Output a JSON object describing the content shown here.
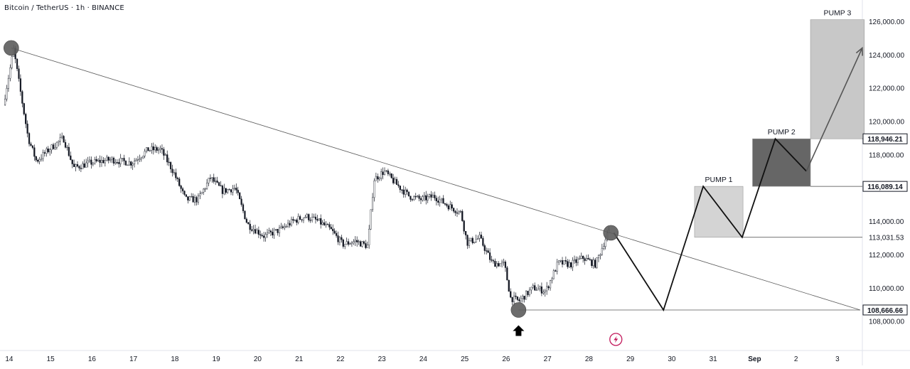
{
  "header": {
    "title": "Bitcoin / TetherUS · 1h · BINANCE"
  },
  "colors": {
    "candle": "#131722",
    "trendline": "#5a5a5a",
    "marker": "#5c5c5c",
    "box_light": "#d4d4d4",
    "box_dark": "#666666",
    "box_pump3": "#c8c8c8",
    "path": "#111111",
    "lightning": "#c2185b"
  },
  "icons": {
    "up_arrow": "up-arrow-icon",
    "lightning": "lightning-icon"
  },
  "chart_data": {
    "type": "candlestick",
    "symbol": "Bitcoin / TetherUS",
    "interval": "1h",
    "exchange": "BINANCE",
    "ylim": [
      106000,
      127000
    ],
    "grid": false,
    "y_ticks": [
      {
        "value": 126000,
        "label": "126,000.00"
      },
      {
        "value": 124000,
        "label": "124,000.00"
      },
      {
        "value": 122000,
        "label": "122,000.00"
      },
      {
        "value": 120000,
        "label": "120,000.00"
      },
      {
        "value": 118000,
        "label": "118,000.00"
      },
      {
        "value": 114000,
        "label": "114,000.00"
      },
      {
        "value": 112000,
        "label": "112,000.00"
      },
      {
        "value": 110000,
        "label": "110,000.00"
      },
      {
        "value": 108000,
        "label": "108,000.00"
      }
    ],
    "price_tags": [
      {
        "value": 118946.21,
        "label": "118,946.21",
        "style": "boxed"
      },
      {
        "value": 116089.14,
        "label": "116,089.14",
        "style": "boxed"
      },
      {
        "value": 113031.53,
        "label": "113,031.53",
        "style": "plain"
      },
      {
        "value": 108666.66,
        "label": "108,666.66",
        "style": "boxed"
      }
    ],
    "x_ticks": [
      {
        "day": 14,
        "label": "14"
      },
      {
        "day": 15,
        "label": "15"
      },
      {
        "day": 16,
        "label": "16"
      },
      {
        "day": 17,
        "label": "17"
      },
      {
        "day": 18,
        "label": "18"
      },
      {
        "day": 19,
        "label": "19"
      },
      {
        "day": 20,
        "label": "20"
      },
      {
        "day": 21,
        "label": "21"
      },
      {
        "day": 22,
        "label": "22"
      },
      {
        "day": 23,
        "label": "23"
      },
      {
        "day": 24,
        "label": "24"
      },
      {
        "day": 25,
        "label": "25"
      },
      {
        "day": 26,
        "label": "26"
      },
      {
        "day": 27,
        "label": "27"
      },
      {
        "day": 28,
        "label": "28"
      },
      {
        "day": 29,
        "label": "29"
      },
      {
        "day": 30,
        "label": "30"
      },
      {
        "day": 31,
        "label": "31"
      },
      {
        "day": 32,
        "label": "Sep",
        "bold": true
      },
      {
        "day": 33,
        "label": "2"
      },
      {
        "day": 34,
        "label": "3"
      }
    ],
    "price_path": [
      [
        13.9,
        121000
      ],
      [
        14.15,
        124300
      ],
      [
        14.3,
        122000
      ],
      [
        14.5,
        119000
      ],
      [
        14.7,
        117600
      ],
      [
        15.0,
        118300
      ],
      [
        15.35,
        119000
      ],
      [
        15.6,
        117200
      ],
      [
        16.0,
        117500
      ],
      [
        16.5,
        117700
      ],
      [
        17.0,
        117500
      ],
      [
        17.4,
        118300
      ],
      [
        17.7,
        118300
      ],
      [
        18.0,
        117000
      ],
      [
        18.3,
        115300
      ],
      [
        18.6,
        115300
      ],
      [
        18.9,
        116600
      ],
      [
        19.2,
        115800
      ],
      [
        19.5,
        116000
      ],
      [
        19.8,
        113800
      ],
      [
        20.2,
        113100
      ],
      [
        20.6,
        113500
      ],
      [
        20.9,
        114000
      ],
      [
        21.2,
        114300
      ],
      [
        21.5,
        114000
      ],
      [
        21.8,
        113500
      ],
      [
        22.1,
        112600
      ],
      [
        22.4,
        112800
      ],
      [
        22.7,
        112500
      ],
      [
        22.85,
        116500
      ],
      [
        23.1,
        117000
      ],
      [
        23.4,
        116200
      ],
      [
        23.7,
        115500
      ],
      [
        24.0,
        115300
      ],
      [
        24.3,
        115500
      ],
      [
        24.6,
        115000
      ],
      [
        24.95,
        114500
      ],
      [
        25.1,
        112700
      ],
      [
        25.4,
        113000
      ],
      [
        25.7,
        111500
      ],
      [
        26.0,
        111400
      ],
      [
        26.15,
        109400
      ],
      [
        26.35,
        109200
      ],
      [
        26.7,
        110000
      ],
      [
        27.0,
        109800
      ],
      [
        27.3,
        111500
      ],
      [
        27.6,
        111400
      ],
      [
        27.9,
        111800
      ],
      [
        28.2,
        111400
      ],
      [
        28.5,
        113300
      ]
    ],
    "candle_seed": 7,
    "trendline": {
      "from": {
        "day": 14.05,
        "value": 124400
      },
      "to": {
        "day": 34.55,
        "value": 108666.66
      }
    },
    "support_line": {
      "from": {
        "day": 26.3,
        "value": 108666.66
      },
      "to": {
        "day": 34.55,
        "value": 108666.66
      }
    },
    "markers": [
      {
        "day": 14.05,
        "value": 124400
      },
      {
        "day": 28.53,
        "value": 113300
      },
      {
        "day": 26.3,
        "value": 108666.66
      }
    ],
    "arrow": {
      "day": 26.3,
      "value": 107750
    },
    "projection_path": [
      [
        28.6,
        113300
      ],
      [
        29.8,
        108666.66
      ],
      [
        30.76,
        116089.14
      ],
      [
        31.7,
        113031.53
      ],
      [
        32.5,
        118946.21
      ],
      [
        33.25,
        117000
      ],
      [
        34.6,
        124400
      ]
    ],
    "pump_boxes": [
      {
        "label": "PUMP 1",
        "from_day": 30.55,
        "to_day": 31.72,
        "low": 113031.53,
        "high": 116089.14,
        "fill": "box_light"
      },
      {
        "label": "PUMP 2",
        "from_day": 31.95,
        "to_day": 33.35,
        "low": 116089.14,
        "high": 118946.21,
        "fill": "box_dark"
      },
      {
        "label": "PUMP 3",
        "from_day": 33.35,
        "to_day": 34.65,
        "low": 118946.21,
        "high": 126100,
        "fill": "box_pump3"
      }
    ],
    "level_lines": [
      {
        "from_day": 31.72,
        "value": 113031.53
      },
      {
        "from_day": 33.35,
        "value": 116089.14
      },
      {
        "from_day": 34.65,
        "value": 118946.21
      }
    ],
    "lightning": {
      "day": 28.65,
      "value": 106900
    }
  }
}
